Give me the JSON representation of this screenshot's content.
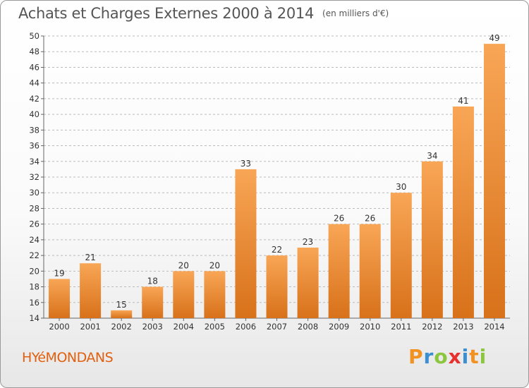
{
  "title": "Achats et Charges Externes 2000 à 2014",
  "unit": "(en milliers d'€)",
  "place_name": "HYéMONDANS",
  "logo": {
    "letters": [
      "P",
      "r",
      "o",
      "x",
      "i",
      "t",
      "i"
    ],
    "colors": [
      "#f29222",
      "#3b8fd0",
      "#8cc63f",
      "#e8312f",
      "#3b8fd0",
      "#f29222",
      "#8cc63f"
    ]
  },
  "colors": {
    "bar_top": "#f8a656",
    "bar_bottom": "#d8711a",
    "grid": "#bbbbbb",
    "title": "#555555",
    "place": "#e06010"
  },
  "chart_data": {
    "type": "bar",
    "title": "Achats et Charges Externes 2000 à 2014",
    "subtitle": "(en milliers d'€)",
    "xlabel": "",
    "ylabel": "",
    "categories": [
      "2000",
      "2001",
      "2002",
      "2003",
      "2004",
      "2005",
      "2006",
      "2007",
      "2008",
      "2009",
      "2010",
      "2011",
      "2012",
      "2013",
      "2014"
    ],
    "values": [
      19,
      21,
      15,
      18,
      20,
      20,
      33,
      22,
      23,
      26,
      26,
      30,
      34,
      41,
      49
    ],
    "ylim": [
      14,
      50
    ],
    "yticks": [
      14,
      16,
      18,
      20,
      22,
      24,
      26,
      28,
      30,
      32,
      34,
      36,
      38,
      40,
      42,
      44,
      46,
      48,
      50
    ],
    "grid": "horizontal dashed",
    "legend": "none",
    "data_labels": true
  }
}
